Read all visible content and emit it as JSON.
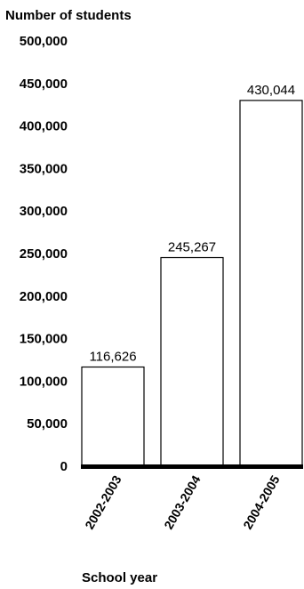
{
  "chart_data": {
    "type": "bar",
    "ylabel": "Number of students",
    "xlabel": "School year",
    "categories": [
      "2002-2003",
      "2003-2004",
      "2004-2005"
    ],
    "values": [
      116626,
      245267,
      430044
    ],
    "data_labels": [
      "116,626",
      "245,267",
      "430,044"
    ],
    "ylim": [
      0,
      500000
    ],
    "yticks": [
      0,
      50000,
      100000,
      150000,
      200000,
      250000,
      300000,
      350000,
      400000,
      450000,
      500000
    ],
    "ytick_labels": [
      "0",
      "50,000",
      "100,000",
      "150,000",
      "200,000",
      "250,000",
      "300,000",
      "350,000",
      "400,000",
      "450,000",
      "500,000"
    ],
    "grid": false,
    "bar_fill": "#ffffff",
    "bar_stroke": "#000000",
    "baseline_color": "#000000"
  }
}
